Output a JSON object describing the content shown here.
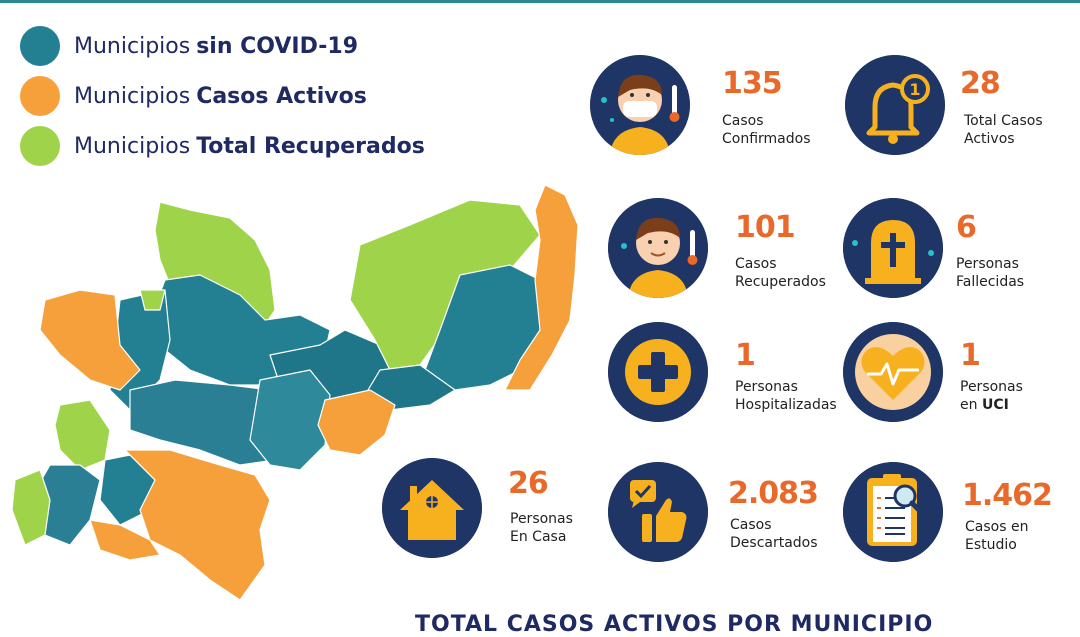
{
  "colors": {
    "teal": "#237f92",
    "orange": "#f5a03a",
    "green": "#9fd44a",
    "navy": "#1f3566",
    "accent": "#e8692a"
  },
  "legend": [
    {
      "prefix": "Municipios",
      "strong": "sin COVID-19",
      "color": "#237f92"
    },
    {
      "prefix": "Municipios",
      "strong": "Casos Activos",
      "color": "#f5a03a"
    },
    {
      "prefix": "Municipios",
      "strong": "Total Recuperados",
      "color": "#9fd44a"
    }
  ],
  "stats": {
    "confirmados": {
      "value": "135",
      "line1": "Casos",
      "line2": "Confirmados",
      "icon": "child-mask-thermometer-icon"
    },
    "activos": {
      "value": "28",
      "line1": "Total Casos",
      "line2": "Activos",
      "icon": "bell-icon"
    },
    "recuperados": {
      "value": "101",
      "line1": "Casos",
      "line2": "Recuperados",
      "icon": "child-thermometer-icon"
    },
    "fallecidas": {
      "value": "6",
      "line1": "Personas",
      "line2": "Fallecidas",
      "icon": "tombstone-icon"
    },
    "hospitalizadas": {
      "value": "1",
      "line1": "Personas",
      "line2": "Hospitalizadas",
      "icon": "medical-cross-icon"
    },
    "uci": {
      "value": "1",
      "line1": "Personas",
      "line2_prefix": "en",
      "line2_strong": "UCI",
      "icon": "heart-pulse-icon"
    },
    "en_casa": {
      "value": "26",
      "line1": "Personas",
      "line2": "En Casa",
      "icon": "house-icon"
    },
    "descartados": {
      "value": "2.083",
      "line1": "Casos",
      "line2": "Descartados",
      "icon": "thumbs-up-check-icon"
    },
    "estudio": {
      "value": "1.462",
      "line1": "Casos en",
      "line2": "Estudio",
      "icon": "clipboard-magnifier-icon"
    }
  },
  "footer_title": "TOTAL CASOS ACTIVOS POR MUNICIPIO"
}
